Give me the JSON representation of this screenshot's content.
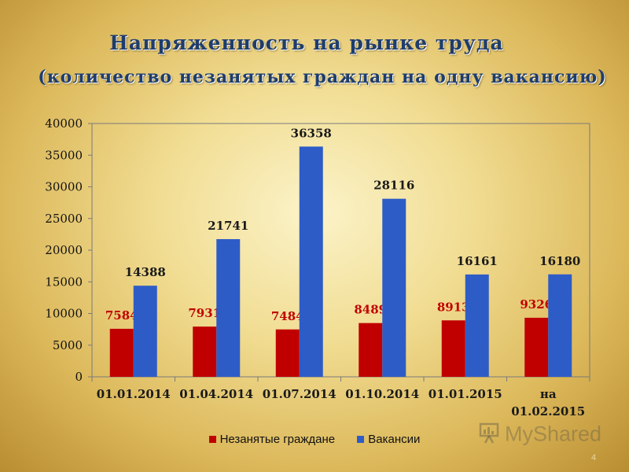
{
  "title": "Напряженность на рынке труда",
  "subtitle": "(количество незанятых граждан на одну вакансию)",
  "chart_data": {
    "type": "bar",
    "categories": [
      "01.01.2014",
      "01.04.2014",
      "01.07.2014",
      "01.10.2014",
      "01.01.2015",
      [
        "на",
        "01.02.2015"
      ]
    ],
    "series": [
      {
        "name": "Незанятые граждане",
        "color": "#c00000",
        "label_color": "#c00000",
        "values": [
          7584,
          7931,
          7484,
          8489,
          8913,
          9326
        ]
      },
      {
        "name": "Вакансии",
        "color": "#2e5cc7",
        "label_color": "#1a1a1a",
        "values": [
          14388,
          21741,
          36358,
          28116,
          16161,
          16180
        ]
      }
    ],
    "ylim": [
      0,
      40000
    ],
    "yticks": [
      0,
      5000,
      10000,
      15000,
      20000,
      25000,
      30000,
      35000,
      40000
    ],
    "grid": false,
    "legend": "bottom"
  },
  "watermark": "MyShared",
  "page_number": "4"
}
